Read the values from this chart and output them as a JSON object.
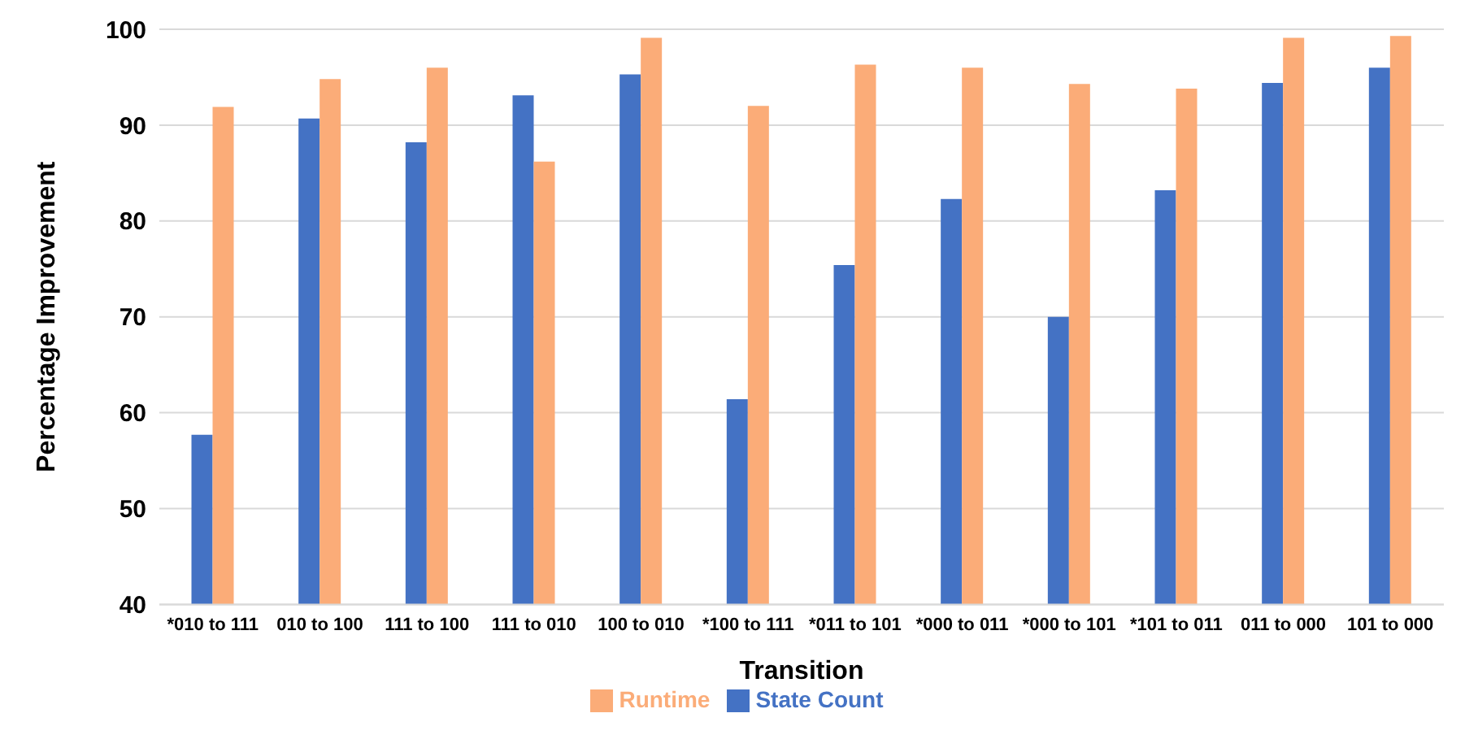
{
  "chart_data": {
    "type": "bar",
    "xlabel": "Transition",
    "ylabel": "Percentage Improvement",
    "categories": [
      "*010 to 111",
      "010 to 100",
      "111 to 100",
      "111 to 010",
      "100 to 010",
      "*100  to 111",
      "*011 to 101",
      "*000 to 011",
      "*000 to 101",
      "*101 to 011",
      "011 to 000",
      "101 to 000"
    ],
    "series": [
      {
        "name": "State Count",
        "color": "#4472c4",
        "values": [
          57.7,
          90.7,
          88.2,
          93.1,
          95.3,
          61.4,
          75.4,
          82.3,
          70.0,
          83.2,
          94.4,
          96.0
        ]
      },
      {
        "name": "Runtime",
        "color": "#fbac78",
        "values": [
          91.9,
          94.8,
          96.0,
          86.2,
          99.1,
          92.0,
          96.3,
          96.0,
          94.3,
          93.8,
          99.1,
          99.3
        ]
      }
    ],
    "ylim": [
      40,
      100
    ],
    "yticks": [
      40,
      50,
      60,
      70,
      80,
      90,
      100
    ],
    "grid": "y",
    "legend": "bottom"
  }
}
